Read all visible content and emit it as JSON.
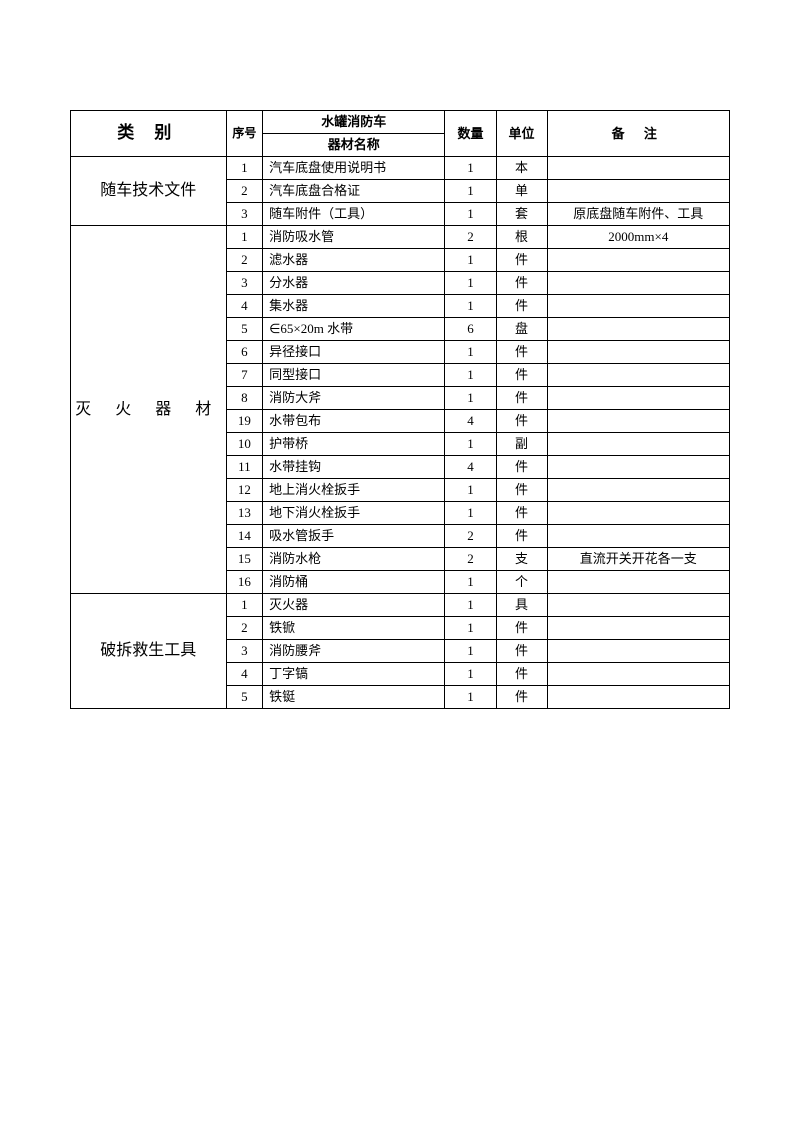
{
  "header": {
    "category": "类 别",
    "seq": "序号",
    "top": "水罐消防车",
    "sub": "器材名称",
    "qty": "数量",
    "unit": "单位",
    "note": "备 注"
  },
  "groups": [
    {
      "category": "随车技术文件",
      "spaced": false,
      "rows": [
        {
          "seq": "1",
          "name": "汽车底盘使用说明书",
          "qty": "1",
          "unit": "本",
          "note": ""
        },
        {
          "seq": "2",
          "name": "汽车底盘合格证",
          "qty": "1",
          "unit": "单",
          "note": ""
        },
        {
          "seq": "3",
          "name": "随车附件（工具）",
          "qty": "1",
          "unit": "套",
          "note": "原底盘随车附件、工具"
        }
      ]
    },
    {
      "category": "灭 火 器 材",
      "spaced": true,
      "rows": [
        {
          "seq": "1",
          "name": "消防吸水管",
          "qty": "2",
          "unit": "根",
          "note": "2000mm×4"
        },
        {
          "seq": "2",
          "name": "滤水器",
          "qty": "1",
          "unit": "件",
          "note": ""
        },
        {
          "seq": "3",
          "name": "分水器",
          "qty": "1",
          "unit": "件",
          "note": ""
        },
        {
          "seq": "4",
          "name": "集水器",
          "qty": "1",
          "unit": "件",
          "note": ""
        },
        {
          "seq": "5",
          "name": "∈65×20m 水带",
          "qty": "6",
          "unit": "盘",
          "note": ""
        },
        {
          "seq": "6",
          "name": "异径接口",
          "qty": "1",
          "unit": "件",
          "note": ""
        },
        {
          "seq": "7",
          "name": "同型接口",
          "qty": "1",
          "unit": "件",
          "note": ""
        },
        {
          "seq": "8",
          "name": "消防大斧",
          "qty": "1",
          "unit": "件",
          "note": ""
        },
        {
          "seq": "19",
          "name": "水带包布",
          "qty": "4",
          "unit": "件",
          "note": ""
        },
        {
          "seq": "10",
          "name": "护带桥",
          "qty": "1",
          "unit": "副",
          "note": ""
        },
        {
          "seq": "11",
          "name": "水带挂钩",
          "qty": "4",
          "unit": "件",
          "note": ""
        },
        {
          "seq": "12",
          "name": "地上消火栓扳手",
          "qty": "1",
          "unit": "件",
          "note": ""
        },
        {
          "seq": "13",
          "name": "地下消火栓扳手",
          "qty": "1",
          "unit": "件",
          "note": ""
        },
        {
          "seq": "14",
          "name": "吸水管扳手",
          "qty": "2",
          "unit": "件",
          "note": ""
        },
        {
          "seq": "15",
          "name": "消防水枪",
          "qty": "2",
          "unit": "支",
          "note": "直流开关开花各一支"
        },
        {
          "seq": "16",
          "name": "消防桶",
          "qty": "1",
          "unit": "个",
          "note": ""
        }
      ]
    },
    {
      "category": "破拆救生工具",
      "spaced": false,
      "rows": [
        {
          "seq": "1",
          "name": "灭火器",
          "qty": "1",
          "unit": "具",
          "note": ""
        },
        {
          "seq": "2",
          "name": "铁锨",
          "qty": "1",
          "unit": "件",
          "note": ""
        },
        {
          "seq": "3",
          "name": "消防腰斧",
          "qty": "1",
          "unit": "件",
          "note": ""
        },
        {
          "seq": "4",
          "name": "丁字镐",
          "qty": "1",
          "unit": "件",
          "note": ""
        },
        {
          "seq": "5",
          "name": "铁铤",
          "qty": "1",
          "unit": "件",
          "note": ""
        }
      ]
    }
  ],
  "style": {
    "border_color": "#000000",
    "background_color": "#ffffff",
    "header_fontsize": 13,
    "body_fontsize": 13,
    "category_fontsize": 16
  }
}
